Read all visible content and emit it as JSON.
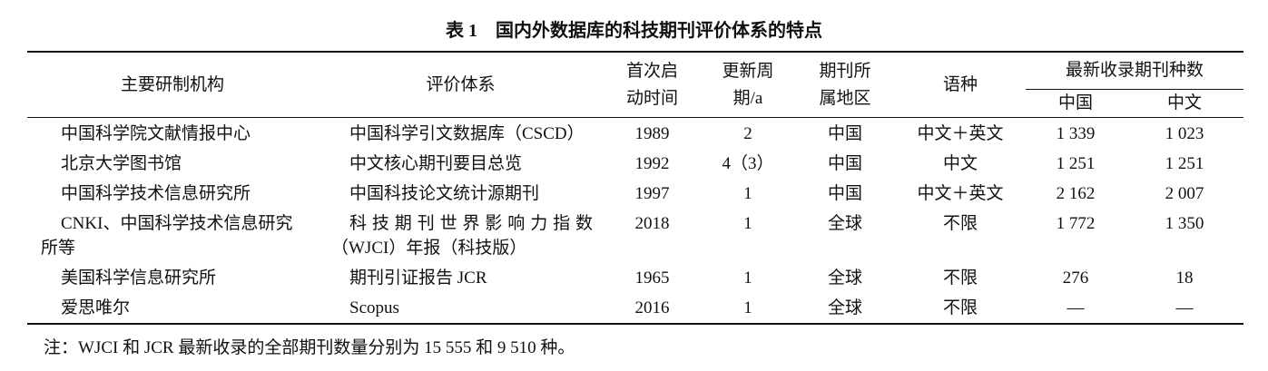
{
  "title": "表 1　国内外数据库的科技期刊评价体系的特点",
  "table": {
    "header": [
      "主要研制机构",
      "评价体系",
      "首次启\n动时间",
      "更新周\n期/a",
      "期刊所\n属地区",
      "语种",
      "最新收录期刊种数"
    ],
    "subheader": [
      "中国",
      "中文"
    ],
    "rows": [
      [
        "中国科学院文献情报中心",
        "中国科学引文数据库（CSCD）",
        "1989",
        "2",
        "中国",
        "中文＋英文",
        "1 339",
        "1 023"
      ],
      [
        "北京大学图书馆",
        "中文核心期刊要目总览",
        "1992",
        "4（3）",
        "中国",
        "中文",
        "1 251",
        "1 251"
      ],
      [
        "中国科学技术信息研究所",
        "中国科技论文统计源期刊",
        "1997",
        "1",
        "中国",
        "中文＋英文",
        "2 162",
        "2 007"
      ],
      [
        "CNKI、中国科学技术信息研究所等",
        "科技期刊世界影响力指数（WJCI）年报（科技版）",
        "2018",
        "1",
        "全球",
        "不限",
        "1 772",
        "1 350"
      ],
      [
        "美国科学信息研究所",
        "期刊引证报告 JCR",
        "1965",
        "1",
        "全球",
        "不限",
        "276",
        "18"
      ],
      [
        "爱思唯尔",
        "Scopus",
        "2016",
        "1",
        "全球",
        "不限",
        "—",
        "—"
      ]
    ]
  },
  "note": "注：WJCI 和 JCR 最新收录的全部期刊数量分别为 15 555 和 9 510 种。"
}
